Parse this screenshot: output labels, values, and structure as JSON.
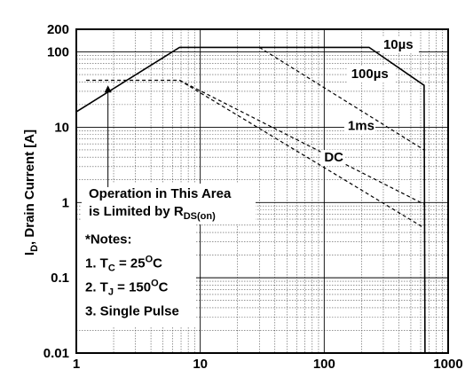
{
  "chart_data": {
    "type": "line",
    "title": "",
    "xlabel": "",
    "ylabel": "I",
    "ylabel_sub": "D",
    "ylabel_rest": ", Drain Current [A]",
    "xscale": "log",
    "yscale": "log",
    "xlim": [
      1,
      1000
    ],
    "ylim": [
      0.01,
      200
    ],
    "grid": true,
    "x_ticks": [
      {
        "value": 1,
        "label": "1"
      },
      {
        "value": 10,
        "label": "10"
      },
      {
        "value": 100,
        "label": "100"
      },
      {
        "value": 1000,
        "label": "1000"
      }
    ],
    "y_ticks": [
      {
        "value": 0.01,
        "label": "0.01"
      },
      {
        "value": 0.1,
        "label": "0.1"
      },
      {
        "value": 1,
        "label": "1"
      },
      {
        "value": 10,
        "label": "10"
      },
      {
        "value": 100,
        "label": "100"
      },
      {
        "value": 200,
        "label": "200"
      }
    ],
    "series": [
      {
        "name": "10µs",
        "style": "solid",
        "points": [
          [
            1,
            16
          ],
          [
            6.8,
            115
          ],
          [
            230,
            115
          ],
          [
            640,
            36
          ],
          [
            650,
            0.01
          ]
        ]
      },
      {
        "name": "100µs",
        "style": "dashed",
        "points": [
          [
            30,
            115
          ],
          [
            640,
            5
          ]
        ]
      },
      {
        "name": "1ms",
        "style": "dashed",
        "points": [
          [
            6.8,
            42
          ],
          [
            640,
            0.95
          ]
        ]
      },
      {
        "name": "DC",
        "style": "dashed",
        "points": [
          [
            1.2,
            42
          ],
          [
            6.8,
            42
          ],
          [
            640,
            0.46
          ]
        ]
      }
    ],
    "series_labels": [
      {
        "series": "10µs",
        "main": "10",
        "unit": "µs",
        "at": [
          300,
          110
        ]
      },
      {
        "series": "100µs",
        "main": "100",
        "unit": "µs",
        "at": [
          165,
          45
        ]
      },
      {
        "series": "1ms",
        "main": "1ms",
        "unit": "",
        "at": [
          155,
          9.2
        ]
      },
      {
        "series": "DC",
        "main": "DC",
        "unit": "",
        "at": [
          100,
          3.5
        ]
      }
    ],
    "annotations": {
      "area_line1": "Operation in This Area",
      "area_line2_main": "is Limited by R",
      "area_line2_sub": "DS(on)",
      "arrow_from": [
        1.8,
        1.6
      ],
      "arrow_to": [
        1.8,
        36
      ],
      "notes_title": "*Notes:",
      "note1_main": "1. T",
      "note1_sub": "C",
      "note1_rest": " = 25",
      "note1_sup": "O",
      "note1_end": "C",
      "note2_main": "2. T",
      "note2_sub": "J",
      "note2_rest": " = 150",
      "note2_sup": "O",
      "note2_end": "C",
      "note3": "3. Single Pulse"
    }
  }
}
